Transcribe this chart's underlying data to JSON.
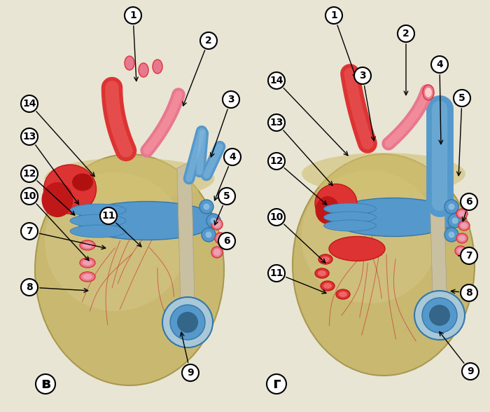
{
  "bg_color": "#e8e5d5",
  "heart_color_main": "#c8b870",
  "heart_color_highlight": "#d4c888",
  "heart_color_shadow": "#a89850",
  "red_dark": "#c01818",
  "red_mid": "#dd3333",
  "red_light": "#ee6666",
  "red_pink": "#e87890",
  "blue_dark": "#3377aa",
  "blue_mid": "#5599cc",
  "blue_light": "#88bbdd",
  "vessel_pink": "#dd7799",
  "vessel_pink_light": "#eea0b0",
  "label_fontsize": 10,
  "letter_fontsize": 16,
  "left_letter": "в",
  "right_letter": "г",
  "fig_width": 7.0,
  "fig_height": 5.88,
  "fig_dpi": 100
}
